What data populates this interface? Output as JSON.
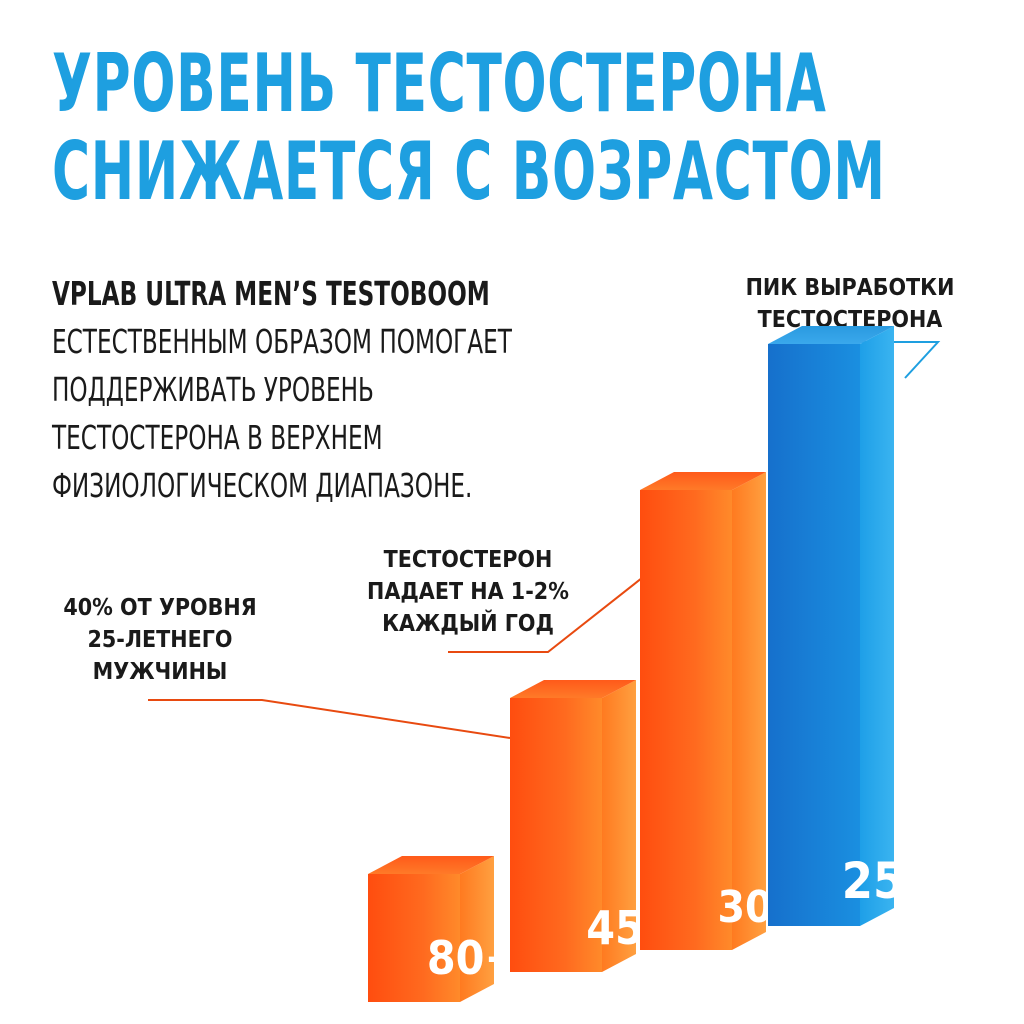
{
  "title": {
    "line1": "УРОВЕНЬ ТЕСТОСТЕРОНА",
    "line2": "СНИЖАЕТСЯ С ВОЗРАСТОМ"
  },
  "description": {
    "brand": "VPLAB ULTRA MEN’S TESTOBOOM",
    "lines": [
      "ЕСТЕСТВЕННЫМ ОБРАЗОМ ПОМОГАЕТ",
      "ПОДДЕРЖИВАТЬ УРОВЕНЬ",
      "ТЕСТОСТЕРОНА В ВЕРХНЕМ",
      "ФИЗИОЛОГИЧЕСКОМ ДИАПАЗОНЕ."
    ]
  },
  "callouts": {
    "peak": [
      "ПИК ВЫРАБОТКИ",
      "ТЕСТОСТЕРОНА"
    ],
    "drop": [
      "ТЕСТОСТЕРОН",
      "ПАДАЕТ НА 1-2%",
      "КАЖДЫЙ ГОД"
    ],
    "forty": [
      "40% ОТ УРОВНЯ",
      "25-ЛЕТНЕГО",
      "МУЖЧИНЫ"
    ]
  },
  "colors": {
    "title": "#1e9fe0",
    "orange": "#ff5a1a",
    "blue": "#1a8fe0"
  },
  "chart_data": {
    "type": "bar",
    "categories": [
      "80+",
      "45",
      "30",
      "25"
    ],
    "values": [
      22,
      47,
      79,
      100
    ],
    "value_unit": "relative level, % of peak (estimated from bar heights)",
    "bar_colors": [
      "#ff5a1a",
      "#ff5a1a",
      "#ff5a1a",
      "#1a8fe0"
    ],
    "ylim": [
      0,
      100
    ]
  }
}
